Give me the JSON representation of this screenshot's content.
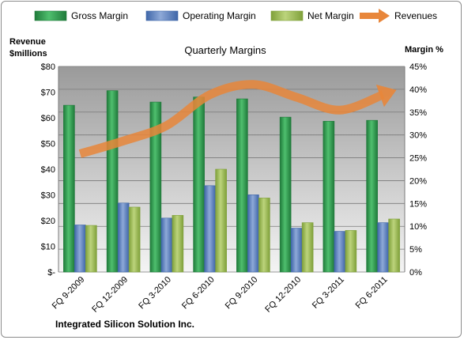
{
  "colors": {
    "gross": "#1f7a3a",
    "gross_light": "#4fbf6e",
    "operating": "#3f66a8",
    "operating_light": "#8ea9d8",
    "net": "#7fa03a",
    "net_light": "#bcd47c",
    "revenue": "#e8863a",
    "plot_top": "#9a9a9a",
    "plot_bottom": "#f4f4f4"
  },
  "chart_data": {
    "type": "bar",
    "title": "Quarterly Margins",
    "company": "Integrated Silicon Solution Inc.",
    "left_axis_title": [
      "Revenue",
      "$millions"
    ],
    "right_axis_title": "Margin %",
    "categories": [
      "FQ 9-2009",
      "FQ 12-2009",
      "FQ 3-2010",
      "FQ 6-2010",
      "FQ 9-2010",
      "FQ 12-2010",
      "FQ 3-2011",
      "FQ 6-2011"
    ],
    "left_ticks": [
      "$-",
      "$10",
      "$20",
      "$30",
      "$40",
      "$50",
      "$60",
      "$70",
      "$80"
    ],
    "right_ticks": [
      "0%",
      "5%",
      "10%",
      "15%",
      "20%",
      "25%",
      "30%",
      "35%",
      "40%",
      "45%"
    ],
    "left_range": [
      0,
      80
    ],
    "right_range": [
      0,
      45
    ],
    "grid": true,
    "legend_position": "top",
    "series": [
      {
        "name": "Gross Margin",
        "kind": "bar",
        "axis": "right",
        "values": [
          36.5,
          39.7,
          37.2,
          38.3,
          37.9,
          33.9,
          33.0,
          33.2
        ]
      },
      {
        "name": "Operating Margin",
        "kind": "bar",
        "axis": "right",
        "values": [
          10.3,
          15.1,
          11.8,
          18.9,
          16.9,
          9.6,
          8.9,
          10.8
        ]
      },
      {
        "name": "Net Margin",
        "kind": "bar",
        "axis": "right",
        "values": [
          10.2,
          14.2,
          12.4,
          22.5,
          16.2,
          10.8,
          9.1,
          11.6
        ]
      },
      {
        "name": "Revenues",
        "kind": "line",
        "axis": "left",
        "values": [
          46,
          51,
          57,
          69,
          73,
          68,
          63,
          69
        ]
      }
    ]
  }
}
